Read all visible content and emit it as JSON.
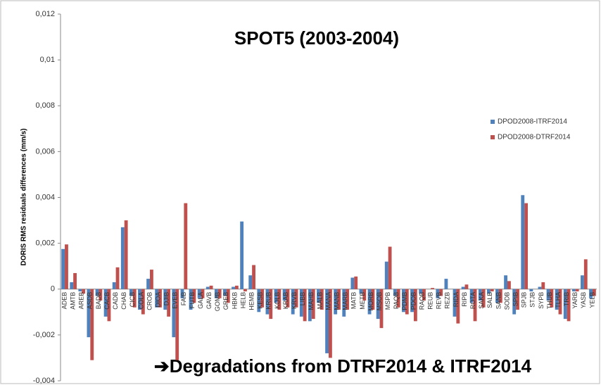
{
  "chart_data": {
    "type": "bar",
    "title": "SPOT5 (2003-2004)",
    "annotation": "➔Degradations from DTRF2014 & ITRF2014",
    "y_label": "DORIS RMS residuals differences (mm/s)",
    "categories": [
      "ADEB",
      "AMTB",
      "AREB",
      "ASDB",
      "BADB",
      "CACB",
      "CADB",
      "CHAB",
      "CICB",
      "COLA",
      "CROB",
      "DIOA",
      "DJIB",
      "EVEB",
      "FAIB",
      "FUTB",
      "GALA",
      "GAVB",
      "GOMB",
      "GREB",
      "HBKB",
      "HELB",
      "HEMB",
      "KESB",
      "KRUB",
      "KOLB",
      "KRAB",
      "KRVB",
      "LIBB",
      "MAHB",
      "MALB",
      "MANA",
      "MANB",
      "MARB",
      "MATB",
      "METB",
      "MORB",
      "MSOB",
      "MSPB",
      "PAQB",
      "PDMB",
      "PDOB",
      "RAQB",
      "REUB",
      "REVB",
      "REZB",
      "RIDA",
      "RIPB",
      "ROTA",
      "SAKA",
      "SALB",
      "SANB",
      "SODB",
      "SPIB",
      "SPJB",
      "STJB",
      "SYPB",
      "THUB",
      "TLHA",
      "TRIB",
      "YARB",
      "YASB",
      "YELB"
    ],
    "series": [
      {
        "name": "DPOD2008-ITRF2014",
        "color": "#4f81bd",
        "values": [
          0.00175,
          0.0003,
          -0.0001,
          -0.0021,
          -0.0003,
          -0.0012,
          0.0003,
          0.0027,
          -0.0003,
          -0.0009,
          0.00045,
          -0.0008,
          -0.0009,
          -0.0021,
          -0.0004,
          -0.0009,
          -0.0004,
          0.0001,
          -0.0004,
          -0.0003,
          0.0001,
          0.00295,
          0.0006,
          -0.001,
          -0.0011,
          -0.0006,
          -0.0005,
          -0.0011,
          -0.0012,
          -0.0014,
          -0.0006,
          -0.0028,
          -0.0011,
          -0.0012,
          0.0005,
          -0.0002,
          -0.0011,
          -0.0013,
          0.0012,
          -0.0003,
          -0.001,
          -0.001,
          -0.0002,
          0,
          -0.0004,
          0.00045,
          -0.0012,
          0.0001,
          -0.0006,
          -0.0005,
          -0.0002,
          -0.0006,
          0.0006,
          -0.0011,
          0.0041,
          -0.0001,
          0.0001,
          -0.0005,
          -0.0009,
          -0.0013,
          -0.0001,
          0.0006,
          -0.0004
        ]
      },
      {
        "name": "DPOD2008-DTRF2014",
        "color": "#c0504d",
        "values": [
          0.00195,
          0.0007,
          -0.0002,
          -0.0031,
          -0.0005,
          -0.0014,
          0.00095,
          0.003,
          -0.0008,
          -0.0011,
          0.00085,
          -0.0008,
          -0.0012,
          -0.0031,
          0.00375,
          -0.0006,
          -0.0004,
          0.00015,
          -0.0004,
          -0.0006,
          0.00015,
          -0.0001,
          0.00105,
          -0.0008,
          -0.0013,
          -0.0009,
          -0.0008,
          -0.0008,
          -0.0014,
          -0.0013,
          -0.0009,
          -0.003,
          -0.0009,
          -0.0009,
          0.00055,
          -0.0005,
          -0.0009,
          -0.0017,
          0.00185,
          -0.0008,
          -0.0011,
          -0.0014,
          -0.0005,
          5e-05,
          -0.0003,
          0,
          -0.0015,
          0.0002,
          -0.0014,
          -0.0008,
          -0.0001,
          -0.0006,
          0.00035,
          -0.0009,
          0.00375,
          0,
          0.0003,
          -0.0008,
          -0.0011,
          -0.0014,
          -0.0001,
          0.0013,
          -0.0003
        ]
      }
    ],
    "ylim": [
      -0.004,
      0.012
    ],
    "yticks": [
      {
        "value": -0.004,
        "label": "-0,004"
      },
      {
        "value": -0.002,
        "label": "-0,002"
      },
      0,
      {
        "value": 0.002,
        "label": "0,002"
      },
      {
        "value": 0.004,
        "label": "0,004"
      },
      {
        "value": 0.006,
        "label": "0,006"
      },
      {
        "value": 0.008,
        "label": "0,008"
      },
      {
        "value": 0.01,
        "label": "0,01"
      },
      {
        "value": 0.012,
        "label": "0,012"
      }
    ],
    "grid": false
  }
}
